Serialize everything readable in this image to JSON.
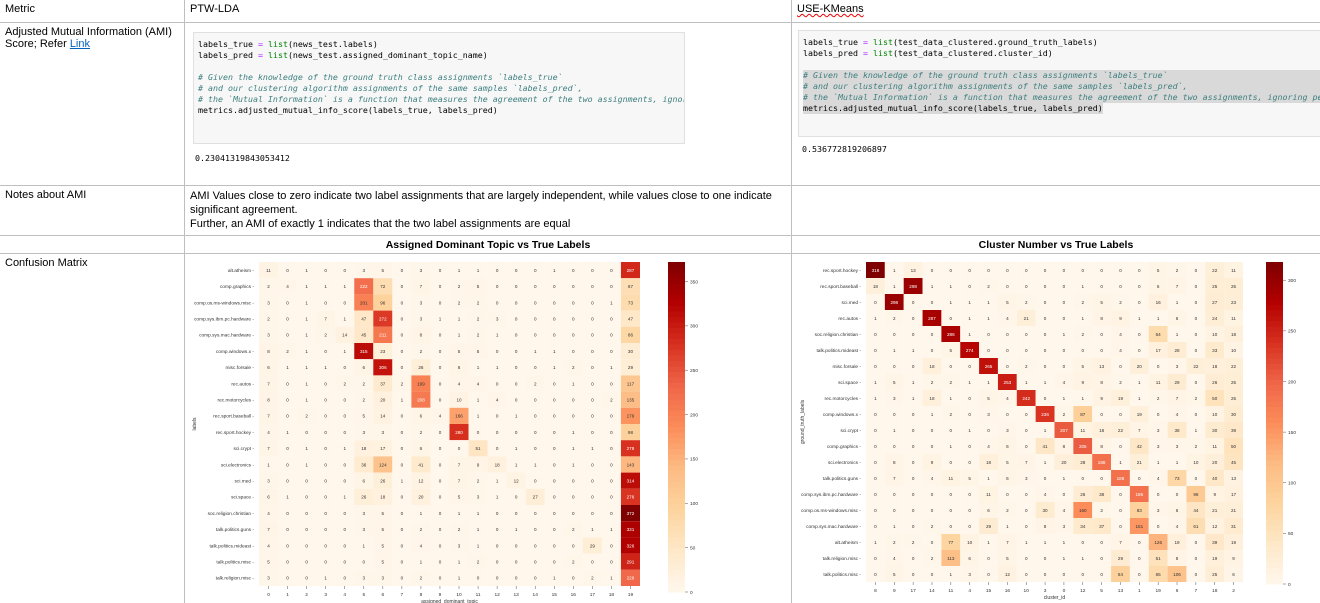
{
  "header": {
    "metric": "Metric",
    "col_a": "PTW-LDA",
    "col_b": "USE-KMeans"
  },
  "ami_row": {
    "label": "Adjusted Mutual Information (AMI) Score; Refer ",
    "link": "Link",
    "a_code": [
      "labels_true = list(news_test.labels)",
      "labels_pred = list(news_test.assigned_dominant_topic_name)",
      "",
      "# Given the knowledge of the ground truth class assignments `labels_true`",
      "# and our clustering algorithm assignments of the same samples `labels_pred`,",
      "# the `Mutual Information` is a function that measures the agreement of the two assignments, ignoring permutations",
      "metrics.adjusted_mutual_info_score(labels_true, labels_pred)"
    ],
    "a_output": "0.23041319843053412",
    "b_code": [
      "labels_true = list(test_data_clustered.ground_truth_labels)",
      "labels_pred = list(test_data_clustered.cluster_id)",
      "",
      "# Given the knowledge of the ground truth class assignments `labels_true`",
      "# and our clustering algorithm assignments of the same samples `labels_pred`,",
      "# the `Mutual Information` is a function that measures the agreement of the two assignments, ignoring permutations",
      "metrics.adjusted_mutual_info_score(labels_true, labels_pred)"
    ],
    "b_output": "0.536772819206897"
  },
  "notes_row": {
    "label": "Notes about AMI",
    "line1": "AMI Values close to zero indicate two label assignments that are largely independent, while values close to one indicate significant agreement.",
    "line2": "Further, an AMI of exactly 1 indicates that the two label assignments are equal"
  },
  "cm_row": {
    "label": "Confusion Matrix"
  },
  "chart_data": [
    {
      "type": "heatmap",
      "title": "Assigned Dominant Topic vs True Labels",
      "xlabel": "assigned_dominant_topic",
      "ylabel": "labels",
      "x": [
        "0",
        "1",
        "2",
        "3",
        "4",
        "5",
        "6",
        "7",
        "8",
        "9",
        "10",
        "11",
        "12",
        "13",
        "14",
        "15",
        "16",
        "17",
        "18",
        "19"
      ],
      "y": [
        "alt.atheism",
        "comp.graphics",
        "comp.os.ms-windows.misc",
        "comp.sys.ibm.pc.hardware",
        "comp.sys.mac.hardware",
        "comp.windows.x",
        "misc.forsale",
        "rec.autos",
        "rec.motorcycles",
        "rec.sport.baseball",
        "rec.sport.hockey",
        "sci.crypt",
        "sci.electronics",
        "sci.med",
        "sci.space",
        "soc.religion.christian",
        "talk.politics.guns",
        "talk.politics.mideast",
        "talk.politics.misc",
        "talk.religion.misc"
      ],
      "values": [
        [
          11,
          0,
          1,
          0,
          0,
          3,
          5,
          0,
          3,
          0,
          1,
          1,
          0,
          0,
          0,
          1,
          0,
          0,
          0,
          287
        ],
        [
          2,
          4,
          1,
          1,
          1,
          222,
          72,
          0,
          7,
          0,
          2,
          5,
          0,
          0,
          0,
          0,
          0,
          0,
          0,
          67
        ],
        [
          3,
          0,
          1,
          0,
          0,
          201,
          96,
          0,
          3,
          0,
          2,
          2,
          0,
          0,
          0,
          0,
          0,
          0,
          1,
          73
        ],
        [
          2,
          0,
          1,
          7,
          1,
          47,
          272,
          0,
          3,
          1,
          1,
          2,
          3,
          0,
          0,
          0,
          0,
          0,
          0,
          47
        ],
        [
          3,
          0,
          1,
          2,
          14,
          45,
          211,
          0,
          8,
          0,
          1,
          2,
          1,
          0,
          0,
          0,
          0,
          0,
          0,
          86
        ],
        [
          8,
          2,
          1,
          0,
          1,
          315,
          23,
          0,
          2,
          0,
          5,
          5,
          0,
          0,
          1,
          1,
          0,
          0,
          0,
          30
        ],
        [
          6,
          1,
          1,
          1,
          0,
          6,
          306,
          0,
          26,
          0,
          6,
          1,
          1,
          0,
          0,
          1,
          2,
          0,
          1,
          29
        ],
        [
          7,
          0,
          1,
          0,
          2,
          2,
          37,
          2,
          199,
          0,
          4,
          4,
          0,
          0,
          2,
          0,
          1,
          0,
          0,
          117
        ],
        [
          8,
          0,
          1,
          0,
          0,
          2,
          20,
          1,
          208,
          0,
          10,
          1,
          4,
          0,
          0,
          0,
          0,
          0,
          2,
          135
        ],
        [
          7,
          0,
          2,
          0,
          0,
          5,
          14,
          0,
          6,
          4,
          166,
          1,
          0,
          1,
          0,
          0,
          0,
          0,
          0,
          179
        ],
        [
          4,
          1,
          0,
          0,
          0,
          3,
          3,
          0,
          2,
          0,
          280,
          0,
          0,
          0,
          0,
          0,
          1,
          0,
          0,
          98
        ],
        [
          7,
          0,
          1,
          0,
          1,
          18,
          17,
          0,
          6,
          0,
          0,
          51,
          0,
          1,
          0,
          0,
          1,
          1,
          0,
          278
        ],
        [
          1,
          0,
          1,
          0,
          0,
          36,
          124,
          0,
          41,
          0,
          7,
          9,
          18,
          1,
          1,
          0,
          1,
          0,
          0,
          143
        ],
        [
          3,
          0,
          0,
          0,
          0,
          6,
          26,
          1,
          12,
          0,
          7,
          2,
          1,
          12,
          0,
          0,
          0,
          0,
          0,
          314
        ],
        [
          6,
          1,
          0,
          0,
          1,
          26,
          18,
          0,
          20,
          0,
          5,
          3,
          1,
          0,
          27,
          0,
          0,
          0,
          0,
          276
        ],
        [
          4,
          0,
          0,
          0,
          0,
          3,
          5,
          0,
          1,
          0,
          1,
          1,
          0,
          0,
          0,
          0,
          0,
          0,
          0,
          372
        ],
        [
          7,
          0,
          0,
          0,
          0,
          3,
          5,
          0,
          2,
          0,
          2,
          1,
          0,
          1,
          0,
          0,
          2,
          1,
          1,
          331
        ],
        [
          4,
          0,
          0,
          0,
          0,
          1,
          5,
          0,
          4,
          0,
          3,
          1,
          0,
          0,
          0,
          0,
          0,
          29,
          0,
          326
        ],
        [
          5,
          0,
          0,
          0,
          0,
          0,
          5,
          0,
          1,
          0,
          1,
          2,
          0,
          0,
          0,
          0,
          2,
          0,
          0,
          291
        ],
        [
          3,
          0,
          0,
          1,
          0,
          3,
          3,
          0,
          2,
          0,
          1,
          0,
          0,
          0,
          0,
          1,
          0,
          2,
          1,
          229
        ]
      ],
      "vmin": 0,
      "vmax": 372,
      "colorbar_ticks": [
        0,
        50,
        100,
        150,
        200,
        250,
        300,
        350
      ]
    },
    {
      "type": "heatmap",
      "title": "Cluster Number vs True Labels",
      "xlabel": "cluster_id",
      "ylabel": "ground_truth_labels",
      "x": [
        "8",
        "9",
        "17",
        "14",
        "11",
        "4",
        "15",
        "16",
        "10",
        "3",
        "0",
        "12",
        "5",
        "13",
        "1",
        "19",
        "6",
        "7",
        "18",
        "2"
      ],
      "y": [
        "rec.sport.hockey",
        "rec.sport.baseball",
        "sci.med",
        "rec.autos",
        "soc.religion.christian",
        "talk.politics.mideast",
        "misc.forsale",
        "sci.space",
        "rec.motorcycles",
        "comp.windows.x",
        "sci.crypt",
        "comp.graphics",
        "sci.electronics",
        "talk.politics.guns",
        "comp.sys.ibm.pc.hardware",
        "comp.os.ms-windows.misc",
        "comp.sys.mac.hardware",
        "alt.atheism",
        "talk.religion.misc",
        "talk.politics.misc"
      ],
      "values": [
        [
          318,
          1,
          13,
          0,
          0,
          0,
          0,
          0,
          0,
          0,
          0,
          0,
          0,
          0,
          0,
          5,
          2,
          0,
          22,
          11
        ],
        [
          18,
          1,
          298,
          1,
          1,
          0,
          2,
          0,
          0,
          0,
          0,
          1,
          0,
          0,
          0,
          6,
          7,
          0,
          25,
          25
        ],
        [
          0,
          298,
          0,
          0,
          1,
          1,
          1,
          5,
          2,
          0,
          0,
          2,
          5,
          2,
          0,
          16,
          1,
          0,
          27,
          23
        ],
        [
          1,
          2,
          0,
          287,
          0,
          1,
          1,
          4,
          21,
          0,
          0,
          1,
          8,
          9,
          1,
          1,
          6,
          0,
          24,
          11
        ],
        [
          0,
          0,
          0,
          0,
          286,
          1,
          0,
          0,
          0,
          0,
          1,
          2,
          0,
          4,
          0,
          64,
          1,
          0,
          10,
          18
        ],
        [
          0,
          1,
          1,
          0,
          5,
          274,
          0,
          0,
          0,
          0,
          0,
          0,
          0,
          4,
          0,
          17,
          28,
          0,
          33,
          10
        ],
        [
          0,
          0,
          0,
          18,
          0,
          0,
          265,
          0,
          2,
          0,
          0,
          5,
          13,
          0,
          20,
          0,
          3,
          22,
          18,
          22
        ],
        [
          1,
          5,
          1,
          2,
          2,
          1,
          1,
          253,
          1,
          1,
          4,
          9,
          8,
          2,
          1,
          11,
          29,
          0,
          26,
          25
        ],
        [
          1,
          3,
          1,
          18,
          1,
          0,
          5,
          4,
          242,
          0,
          1,
          1,
          9,
          19,
          1,
          2,
          7,
          2,
          50,
          25
        ],
        [
          0,
          0,
          0,
          1,
          2,
          0,
          3,
          0,
          0,
          236,
          2,
          87,
          0,
          0,
          19,
          0,
          4,
          0,
          10,
          30
        ],
        [
          0,
          1,
          0,
          0,
          0,
          1,
          0,
          3,
          0,
          1,
          207,
          11,
          18,
          22,
          7,
          3,
          38,
          1,
          30,
          39
        ],
        [
          0,
          0,
          0,
          0,
          1,
          0,
          4,
          6,
          0,
          41,
          8,
          205,
          8,
          0,
          42,
          3,
          3,
          2,
          11,
          50
        ],
        [
          0,
          8,
          0,
          9,
          0,
          0,
          18,
          5,
          7,
          1,
          20,
          28,
          188,
          1,
          21,
          1,
          1,
          10,
          20,
          45
        ],
        [
          0,
          7,
          0,
          4,
          11,
          5,
          1,
          6,
          3,
          0,
          1,
          0,
          0,
          188,
          0,
          4,
          73,
          0,
          40,
          13
        ],
        [
          0,
          0,
          0,
          0,
          0,
          0,
          11,
          0,
          0,
          4,
          0,
          26,
          38,
          0,
          186,
          0,
          0,
          96,
          9,
          17
        ],
        [
          0,
          0,
          0,
          0,
          0,
          0,
          6,
          2,
          0,
          30,
          4,
          160,
          2,
          0,
          83,
          3,
          6,
          44,
          21,
          21
        ],
        [
          0,
          1,
          0,
          2,
          0,
          0,
          29,
          1,
          0,
          8,
          3,
          34,
          37,
          0,
          151,
          0,
          4,
          61,
          12,
          31
        ],
        [
          1,
          2,
          2,
          0,
          77,
          10,
          1,
          7,
          1,
          1,
          1,
          0,
          0,
          7,
          0,
          126,
          19,
          0,
          39,
          19
        ],
        [
          0,
          4,
          0,
          2,
          113,
          6,
          0,
          5,
          0,
          0,
          1,
          1,
          0,
          29,
          0,
          51,
          8,
          0,
          19,
          9
        ],
        [
          0,
          5,
          0,
          0,
          1,
          3,
          0,
          12,
          0,
          0,
          0,
          0,
          0,
          84,
          0,
          65,
          106,
          0,
          25,
          6
        ]
      ],
      "vmin": 0,
      "vmax": 318,
      "colorbar_ticks": [
        0,
        50,
        100,
        150,
        200,
        250,
        300
      ]
    }
  ]
}
